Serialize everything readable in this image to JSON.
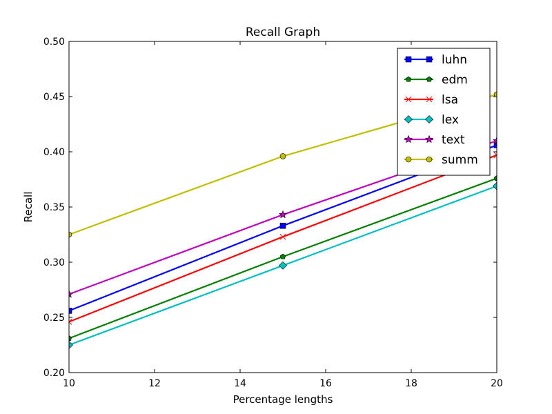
{
  "chart_data": {
    "type": "line",
    "title": "Recall Graph",
    "xlabel": "Percentage lengths",
    "ylabel": "Recall",
    "xlim": [
      10,
      20
    ],
    "ylim": [
      0.2,
      0.5
    ],
    "xticks": [
      "10",
      "12",
      "14",
      "16",
      "18",
      "20"
    ],
    "yticks": [
      "0.20",
      "0.25",
      "0.30",
      "0.35",
      "0.40",
      "0.45",
      "0.50"
    ],
    "grid": false,
    "legend_position": "top-right",
    "x": [
      10,
      15,
      20
    ],
    "series": [
      {
        "name": "luhn",
        "values": [
          0.256,
          0.333,
          0.406
        ],
        "color": "#0000ff",
        "marker": "square"
      },
      {
        "name": "edm",
        "values": [
          0.231,
          0.305,
          0.376
        ],
        "color": "#008000",
        "marker": "pentagon"
      },
      {
        "name": "lsa",
        "values": [
          0.246,
          0.323,
          0.397
        ],
        "color": "#ff0000",
        "marker": "x"
      },
      {
        "name": "lex",
        "values": [
          0.225,
          0.297,
          0.369
        ],
        "color": "#00bfbf",
        "marker": "diamond"
      },
      {
        "name": "text",
        "values": [
          0.271,
          0.343,
          0.41
        ],
        "color": "#bf00bf",
        "marker": "star"
      },
      {
        "name": "summ",
        "values": [
          0.325,
          0.396,
          0.452
        ],
        "color": "#bfbf00",
        "marker": "circle"
      }
    ]
  }
}
